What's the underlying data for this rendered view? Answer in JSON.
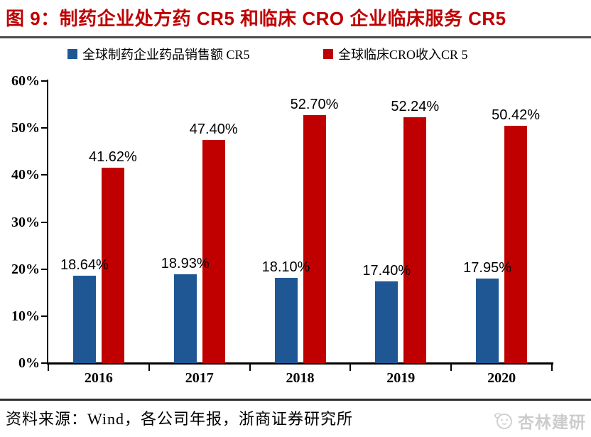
{
  "title": "图 9：制药企业处方药 CR5 和临床 CRO 企业临床服务 CR5",
  "legend": {
    "items": [
      {
        "label": "全球制药企业药品销售额 CR5",
        "color": "#1F5795"
      },
      {
        "label": "全球临床CRO收入CR 5",
        "color": "#C00000"
      }
    ]
  },
  "chart_data": {
    "type": "bar",
    "title": "图 9：制药企业处方药 CR5 和临床 CRO 企业临床服务 CR5",
    "categories": [
      "2016",
      "2017",
      "2018",
      "2019",
      "2020"
    ],
    "series": [
      {
        "name": "全球制药企业药品销售额 CR5",
        "color": "#1F5795",
        "values": [
          18.64,
          18.93,
          18.1,
          17.4,
          17.95
        ],
        "data_labels": [
          "18.64%",
          "18.93%",
          "18.10%",
          "17.40%",
          "17.95%"
        ]
      },
      {
        "name": "全球临床CRO收入CR 5",
        "color": "#C00000",
        "values": [
          41.62,
          47.4,
          52.7,
          52.24,
          50.42
        ],
        "data_labels": [
          "41.62%",
          "47.40%",
          "52.70%",
          "52.24%",
          "50.42%"
        ]
      }
    ],
    "xlabel": "",
    "ylabel": "",
    "ylim": [
      0,
      60
    ],
    "yticks": [
      0,
      10,
      20,
      30,
      40,
      50,
      60
    ],
    "ytick_labels": [
      "0%",
      "10%",
      "20%",
      "30%",
      "40%",
      "50%",
      "60%"
    ],
    "grid": false,
    "legend_position": "top"
  },
  "footer": {
    "source_text": "资料来源：Wind，各公司年报，浙商证券研究所"
  },
  "watermark": {
    "text": "杏林建研",
    "icon": "rabbit-chat-logo"
  },
  "colors": {
    "title": "#BE0000",
    "bar_blue": "#1F5795",
    "bar_red": "#C00000",
    "axis": "#000000",
    "title_rule": "#4A4A4A",
    "footer_rule": "#2E2E2E",
    "watermark": "#CCCCCC"
  }
}
